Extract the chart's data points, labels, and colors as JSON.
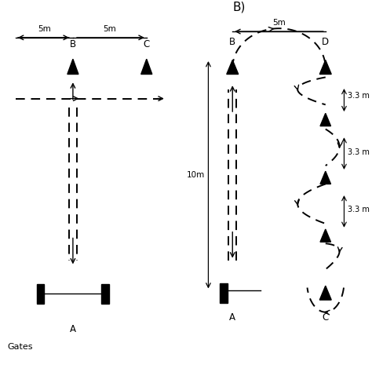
{
  "bg_color": "#ffffff",
  "panel_A": {
    "label_5m_left": "5m",
    "label_5m_right": "5m",
    "label_B": "B",
    "label_C": "C",
    "label_A": "A",
    "label_gates": "Gates"
  },
  "panel_B": {
    "title": "B)",
    "label_5m": "5m",
    "label_10m": "10m",
    "label_33_1": "3.3 m",
    "label_33_2": "3.3 m",
    "label_33_3": "3.3 m",
    "label_B": "B",
    "label_D": "D",
    "label_A": "A",
    "label_C": "C"
  }
}
